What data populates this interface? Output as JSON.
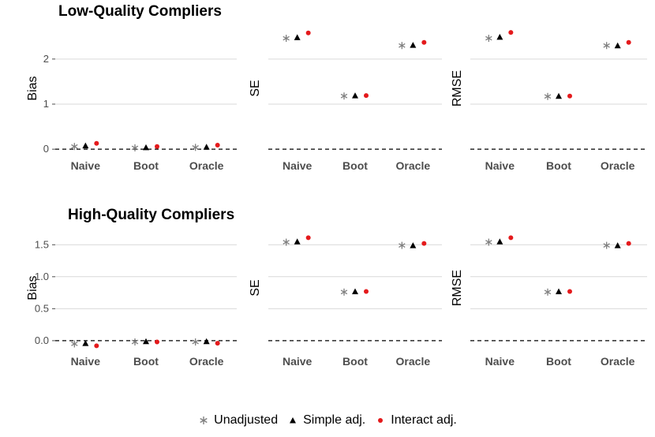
{
  "chart_data": [
    {
      "type": "scatter",
      "title": "Low-Quality Compliers",
      "panels": [
        {
          "metric": "Bias",
          "ylabel": "Bias",
          "show_ticks": true,
          "ylim": [
            -0.05,
            2.75
          ],
          "yticks": [
            0,
            1,
            2
          ],
          "ytick_labels": [
            "0",
            "1",
            "2"
          ],
          "series": {
            "Unadjusted": [
              0.06,
              0.03,
              0.04
            ],
            "Simple adj.": [
              0.08,
              0.04,
              0.05
            ],
            "Interact adj.": [
              0.13,
              0.06,
              0.09
            ]
          }
        },
        {
          "metric": "SE",
          "ylabel": "SE",
          "show_ticks": false,
          "ylim": [
            -0.05,
            2.75
          ],
          "yticks": [
            0,
            1,
            2
          ],
          "ytick_labels": [
            "",
            "",
            ""
          ],
          "series": {
            "Unadjusted": [
              2.46,
              1.18,
              2.3
            ],
            "Simple adj.": [
              2.48,
              1.19,
              2.31
            ],
            "Interact adj.": [
              2.58,
              1.19,
              2.37
            ]
          }
        },
        {
          "metric": "RMSE",
          "ylabel": "RMSE",
          "show_ticks": false,
          "ylim": [
            -0.05,
            2.75
          ],
          "yticks": [
            0,
            1,
            2
          ],
          "ytick_labels": [
            "",
            "",
            ""
          ],
          "series": {
            "Unadjusted": [
              2.46,
              1.17,
              2.3
            ],
            "Simple adj.": [
              2.49,
              1.18,
              2.3
            ],
            "Interact adj.": [
              2.59,
              1.18,
              2.37
            ]
          }
        }
      ]
    },
    {
      "type": "scatter",
      "title": "High-Quality Compliers",
      "panels": [
        {
          "metric": "Bias",
          "ylabel": "Bias",
          "show_ticks": true,
          "ylim": [
            -0.1,
            1.75
          ],
          "yticks": [
            0,
            0.5,
            1,
            1.5
          ],
          "ytick_labels": [
            "0.0",
            "0.5",
            "1.0",
            "1.5"
          ],
          "series": {
            "Unadjusted": [
              -0.05,
              -0.02,
              -0.02
            ],
            "Simple adj.": [
              -0.04,
              -0.01,
              -0.01
            ],
            "Interact adj.": [
              -0.08,
              -0.02,
              -0.04
            ]
          }
        },
        {
          "metric": "SE",
          "ylabel": "SE",
          "show_ticks": false,
          "ylim": [
            -0.1,
            1.75
          ],
          "yticks": [
            0,
            0.5,
            1,
            1.5
          ],
          "ytick_labels": [
            "",
            "",
            "",
            ""
          ],
          "series": {
            "Unadjusted": [
              1.54,
              0.76,
              1.49
            ],
            "Simple adj.": [
              1.55,
              0.77,
              1.49
            ],
            "Interact adj.": [
              1.61,
              0.77,
              1.52
            ]
          }
        },
        {
          "metric": "RMSE",
          "ylabel": "RMSE",
          "show_ticks": false,
          "ylim": [
            -0.1,
            1.75
          ],
          "yticks": [
            0,
            0.5,
            1,
            1.5
          ],
          "ytick_labels": [
            "",
            "",
            "",
            ""
          ],
          "series": {
            "Unadjusted": [
              1.54,
              0.76,
              1.49
            ],
            "Simple adj.": [
              1.55,
              0.77,
              1.49
            ],
            "Interact adj.": [
              1.61,
              0.77,
              1.52
            ]
          }
        }
      ]
    }
  ],
  "categories": [
    "Naive",
    "Boot",
    "Oracle"
  ],
  "legend": {
    "position": "bottom",
    "items": [
      {
        "label": "Unadjusted",
        "marker": "asterisk",
        "color": "#7f7f7f"
      },
      {
        "label": "Simple adj.",
        "marker": "triangle",
        "color": "#000000"
      },
      {
        "label": "Interact adj.",
        "marker": "circle",
        "color": "#e41a1c"
      }
    ]
  },
  "reference_line": {
    "y": 0,
    "style": "dashed"
  }
}
